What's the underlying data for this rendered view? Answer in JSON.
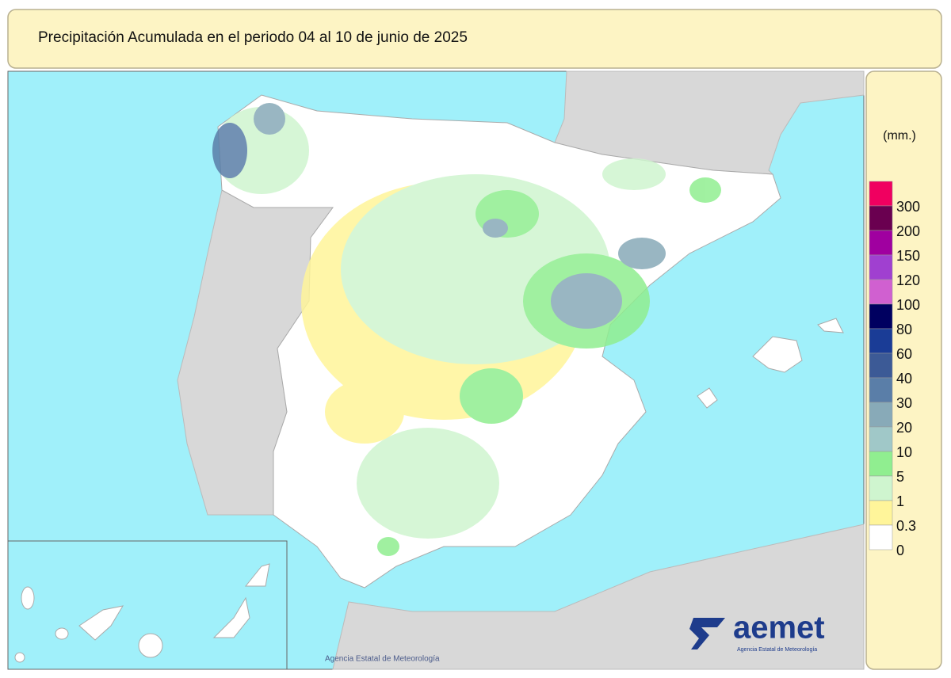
{
  "header": {
    "title": "Precipitación Acumulada en el periodo 04 al 10 de junio de 2025"
  },
  "legend": {
    "unit": "(mm.)",
    "items": [
      {
        "label": 300,
        "color": "#f00060"
      },
      {
        "label": 200,
        "color": "#6a0050"
      },
      {
        "label": 150,
        "color": "#a000a0"
      },
      {
        "label": 120,
        "color": "#a040d0"
      },
      {
        "label": 100,
        "color": "#d060d0"
      },
      {
        "label": 80,
        "color": "#000060"
      },
      {
        "label": 60,
        "color": "#1a3c96"
      },
      {
        "label": 40,
        "color": "#3c5a96"
      },
      {
        "label": 30,
        "color": "#5a7ea8"
      },
      {
        "label": 20,
        "color": "#88aab8"
      },
      {
        "label": 10,
        "color": "#a0c8c8"
      },
      {
        "label": 5,
        "color": "#90ee90"
      },
      {
        "label": 1,
        "color": "#cff5cf"
      },
      {
        "label": 0.3,
        "color": "#fff59a"
      },
      {
        "label": 0,
        "color": "#ffffff"
      }
    ]
  },
  "footer": {
    "credit": "Agencia Estatal de Meteorología",
    "logo": "aemet",
    "logo_subtitle": "Agencia Estatal de Meteorología"
  }
}
